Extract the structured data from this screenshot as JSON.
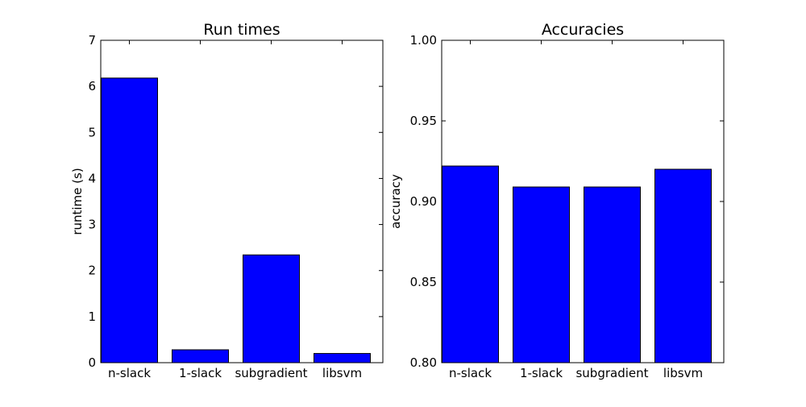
{
  "chart_data": [
    {
      "type": "bar",
      "title": "Run times",
      "xlabel": "",
      "ylabel": "runtime (s)",
      "categories": [
        "n-slack",
        "1-slack",
        "subgradient",
        "libsvm"
      ],
      "values": [
        6.18,
        0.28,
        2.34,
        0.2
      ],
      "ylim": [
        0,
        7
      ],
      "yticks": [
        "0",
        "1",
        "2",
        "3",
        "4",
        "5",
        "6",
        "7"
      ],
      "bar_color": "#0000ff",
      "grid": false
    },
    {
      "type": "bar",
      "title": "Accuracies",
      "xlabel": "",
      "ylabel": "accuracy",
      "categories": [
        "n-slack",
        "1-slack",
        "subgradient",
        "libsvm"
      ],
      "values": [
        0.922,
        0.909,
        0.909,
        0.92
      ],
      "ylim": [
        0.8,
        1.0
      ],
      "yticks": [
        "0.80",
        "0.85",
        "0.90",
        "0.95",
        "1.00"
      ],
      "bar_color": "#0000ff",
      "grid": false
    }
  ]
}
